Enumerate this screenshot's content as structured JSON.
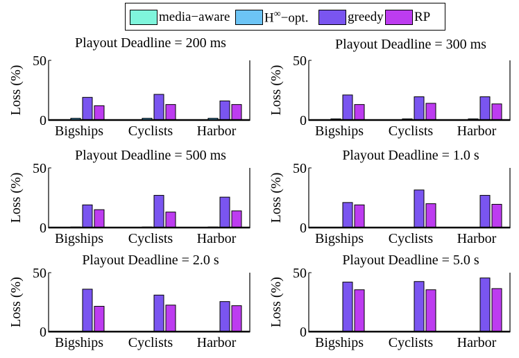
{
  "legend": {
    "items": [
      {
        "label": "media−aware",
        "color": "#7ff5dc"
      },
      {
        "label": "H",
        "sup": "∞",
        "suffix": "−opt.",
        "color": "#6cc4f5"
      },
      {
        "label": "greedy",
        "color": "#7a55f0"
      },
      {
        "label": "RP",
        "color": "#bd3cf0"
      }
    ]
  },
  "chart_data": [
    {
      "type": "bar",
      "title": "Playout Deadline = 200 ms",
      "ylabel": "Loss (%)",
      "ylim": [
        0,
        50
      ],
      "yticks": [
        0,
        50
      ],
      "categories": [
        "Bigships",
        "Cyclists",
        "Harbor"
      ],
      "series": [
        {
          "name": "media−aware",
          "values": [
            0,
            0,
            0
          ]
        },
        {
          "name": "H∞−opt.",
          "values": [
            1.5,
            1.5,
            1.5
          ]
        },
        {
          "name": "greedy",
          "values": [
            19,
            21.5,
            16
          ]
        },
        {
          "name": "RP",
          "values": [
            12,
            13,
            13
          ]
        }
      ]
    },
    {
      "type": "bar",
      "title": "Playout Deadline = 300 ms",
      "ylabel": "Loss (%)",
      "ylim": [
        0,
        50
      ],
      "yticks": [
        0,
        50
      ],
      "categories": [
        "Bigships",
        "Cyclists",
        "Harbor"
      ],
      "series": [
        {
          "name": "media−aware",
          "values": [
            0,
            0,
            0
          ]
        },
        {
          "name": "H∞−opt.",
          "values": [
            1,
            1,
            1
          ]
        },
        {
          "name": "greedy",
          "values": [
            21,
            19.5,
            19.5
          ]
        },
        {
          "name": "RP",
          "values": [
            13,
            14,
            13.5
          ]
        }
      ]
    },
    {
      "type": "bar",
      "title": "Playout Deadline = 500 ms",
      "ylabel": "Loss (%)",
      "ylim": [
        0,
        50
      ],
      "yticks": [
        0,
        50
      ],
      "categories": [
        "Bigships",
        "Cyclists",
        "Harbor"
      ],
      "series": [
        {
          "name": "media−aware",
          "values": [
            0,
            0,
            0
          ]
        },
        {
          "name": "H∞−opt.",
          "values": [
            0.5,
            0.5,
            0.5
          ]
        },
        {
          "name": "greedy",
          "values": [
            19,
            27,
            25.5
          ]
        },
        {
          "name": "RP",
          "values": [
            15,
            13,
            14
          ]
        }
      ]
    },
    {
      "type": "bar",
      "title": "Playout Deadline = 1.0 s",
      "ylabel": "Loss (%)",
      "ylim": [
        0,
        50
      ],
      "yticks": [
        0,
        50
      ],
      "categories": [
        "Bigships",
        "Cyclists",
        "Harbor"
      ],
      "series": [
        {
          "name": "media−aware",
          "values": [
            0,
            0,
            0
          ]
        },
        {
          "name": "H∞−opt.",
          "values": [
            0,
            0,
            0
          ]
        },
        {
          "name": "greedy",
          "values": [
            21,
            31.5,
            27
          ]
        },
        {
          "name": "RP",
          "values": [
            19,
            20,
            19.5
          ]
        }
      ]
    },
    {
      "type": "bar",
      "title": "Playout Deadline = 2.0 s",
      "ylabel": "Loss (%)",
      "ylim": [
        0,
        50
      ],
      "yticks": [
        0,
        50
      ],
      "categories": [
        "Bigships",
        "Cyclists",
        "Harbor"
      ],
      "series": [
        {
          "name": "media−aware",
          "values": [
            0,
            0,
            0
          ]
        },
        {
          "name": "H∞−opt.",
          "values": [
            0,
            0,
            0
          ]
        },
        {
          "name": "greedy",
          "values": [
            36,
            31,
            25.5
          ]
        },
        {
          "name": "RP",
          "values": [
            21.5,
            22.5,
            22
          ]
        }
      ]
    },
    {
      "type": "bar",
      "title": "Playout Deadline = 5.0 s",
      "ylabel": "Loss (%)",
      "ylim": [
        0,
        50
      ],
      "yticks": [
        0,
        50
      ],
      "categories": [
        "Bigships",
        "Cyclists",
        "Harbor"
      ],
      "series": [
        {
          "name": "media−aware",
          "values": [
            0,
            0,
            0
          ]
        },
        {
          "name": "H∞−opt.",
          "values": [
            0,
            0,
            0
          ]
        },
        {
          "name": "greedy",
          "values": [
            42,
            42.5,
            45.5
          ]
        },
        {
          "name": "RP",
          "values": [
            35.5,
            35.5,
            36.5
          ]
        }
      ]
    }
  ]
}
